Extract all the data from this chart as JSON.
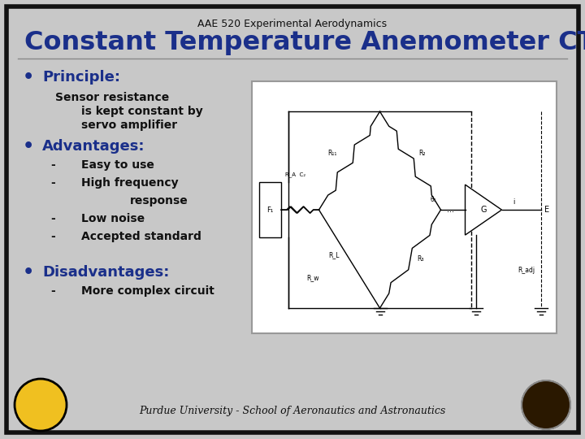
{
  "bg_color": "#c8c8c8",
  "border_color": "#111111",
  "subtitle": "AAE 520 Experimental Aerodynamics",
  "title": "Constant Temperature Anemometer CTA I",
  "title_color": "#1a2f8a",
  "subtitle_color": "#111111",
  "bullet_color": "#1a2f8a",
  "text_color": "#111111",
  "section1_header": "Principle:",
  "section2_header": "Advantages:",
  "section3_header": "Disadvantages:",
  "footer": "Purdue University - School of Aeronautics and Astronautics",
  "footer_color": "#111111"
}
